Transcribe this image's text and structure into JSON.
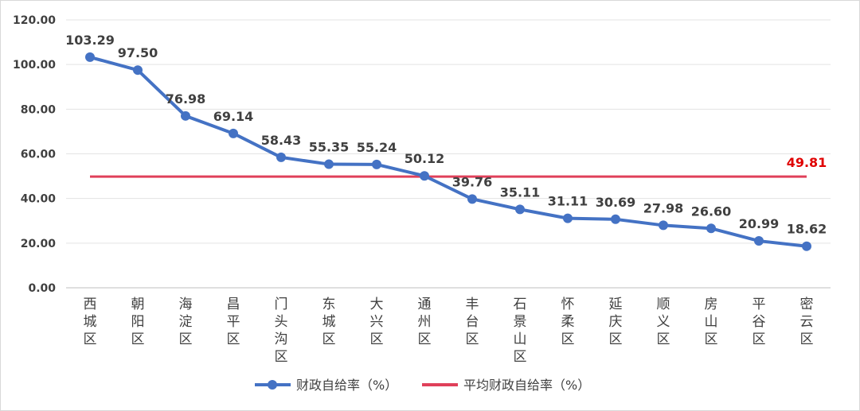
{
  "chart_data": {
    "type": "line",
    "categories": [
      "西城区",
      "朝阳区",
      "海淀区",
      "昌平区",
      "门头沟区",
      "东城区",
      "大兴区",
      "通州区",
      "丰台区",
      "石景山区",
      "怀柔区",
      "延庆区",
      "顺义区",
      "房山区",
      "平谷区",
      "密云区"
    ],
    "series": [
      {
        "name": "财政自给率（%）",
        "values": [
          103.29,
          97.5,
          76.98,
          69.14,
          58.43,
          55.35,
          55.24,
          50.12,
          39.76,
          35.11,
          31.11,
          30.69,
          27.98,
          26.6,
          20.99,
          18.62
        ],
        "labels": [
          "103.29",
          "97.50",
          "76.98",
          "69.14",
          "58.43",
          "55.35",
          "55.24",
          "50.12",
          "39.76",
          "35.11",
          "31.11",
          "30.69",
          "27.98",
          "26.60",
          "20.99",
          "18.62"
        ],
        "color": "#4472c4"
      },
      {
        "name": "平均财政自给率（%）",
        "value": 49.81,
        "label": "49.81",
        "color": "#e0405a",
        "label_color": "#e00000"
      }
    ],
    "ylim": [
      0,
      120
    ],
    "yticks": [
      "0.00",
      "20.00",
      "40.00",
      "60.00",
      "80.00",
      "100.00",
      "120.00"
    ],
    "title": "",
    "xlabel": "",
    "ylabel": "",
    "grid": true,
    "legend_position": "bottom"
  }
}
